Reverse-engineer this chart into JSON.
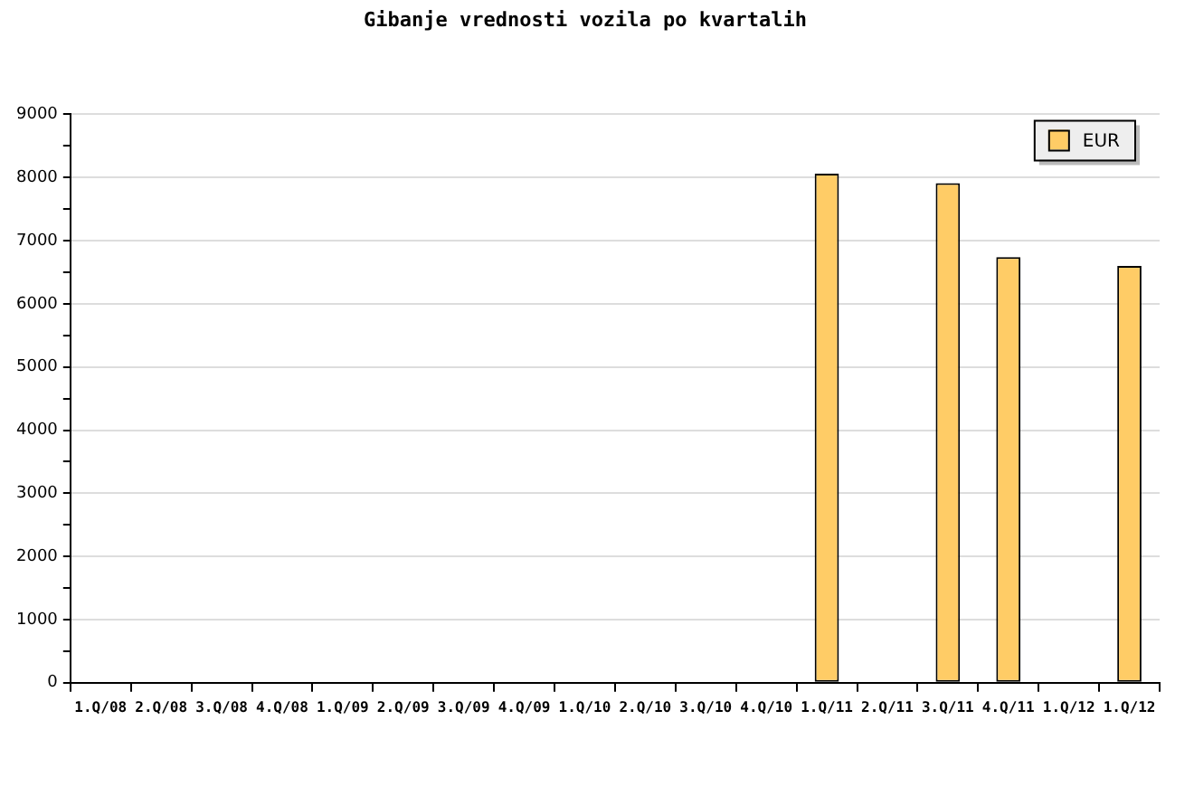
{
  "chart_data": {
    "type": "bar",
    "title": "Gibanje vrednosti vozila po kvartalih",
    "categories": [
      "1.Q/08",
      "2.Q/08",
      "3.Q/08",
      "4.Q/08",
      "1.Q/09",
      "2.Q/09",
      "3.Q/09",
      "4.Q/09",
      "1.Q/10",
      "2.Q/10",
      "3.Q/10",
      "4.Q/10",
      "1.Q/11",
      "2.Q/11",
      "3.Q/11",
      "4.Q/11",
      "1.Q/12",
      "1.Q/12"
    ],
    "series": [
      {
        "name": "EUR",
        "color": "#ffcc66",
        "values": [
          null,
          null,
          null,
          null,
          null,
          null,
          null,
          null,
          null,
          null,
          null,
          null,
          8060,
          null,
          7910,
          6740,
          null,
          6600
        ]
      }
    ],
    "ylim": [
      0,
      9000
    ],
    "yticks": [
      0,
      {
        "value": 500,
        "label": null
      },
      1000,
      {
        "value": 1500,
        "label": null
      },
      2000,
      {
        "value": 2500,
        "label": null
      },
      3000,
      {
        "value": 3500,
        "label": null
      },
      4000,
      {
        "value": 4500,
        "label": null
      },
      5000,
      {
        "value": 5500,
        "label": null
      },
      6000,
      {
        "value": 6500,
        "label": null
      },
      7000,
      {
        "value": 7500,
        "label": null
      },
      8000,
      {
        "value": 8500,
        "label": null
      },
      9000
    ],
    "grid": "y",
    "legend": "top right"
  }
}
